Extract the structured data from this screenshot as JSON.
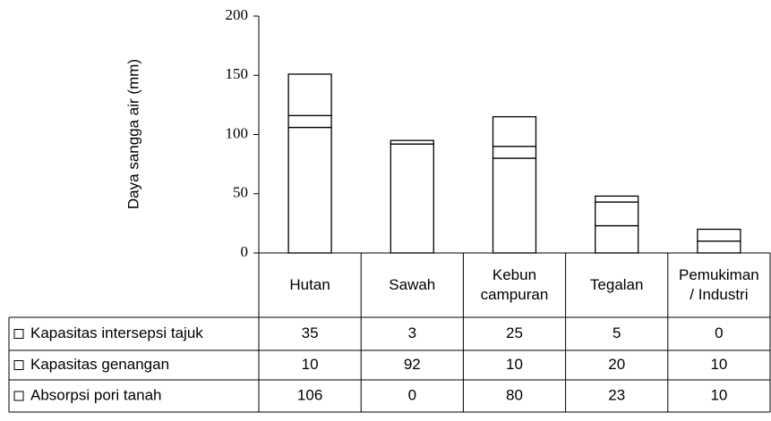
{
  "chart_data": {
    "type": "stacked_bar",
    "ylabel": "Daya sangga air (mm)",
    "categories": [
      "Hutan",
      "Sawah",
      "Kebun campuran",
      "Tegalan",
      "Pemukiman / Industri"
    ],
    "series": [
      {
        "name": "Kapasitas intersepsi tajuk",
        "color": "#ffffff",
        "values": [
          35,
          3,
          25,
          5,
          0
        ]
      },
      {
        "name": "Kapasitas genangan",
        "color": "#ffffff",
        "values": [
          10,
          92,
          10,
          20,
          10
        ]
      },
      {
        "name": "Absorpsi pori tanah",
        "color": "#ffffff",
        "values": [
          106,
          0,
          80,
          23,
          10
        ]
      }
    ],
    "ylim": [
      0,
      200
    ],
    "yticks": [
      0,
      50,
      100,
      150,
      200
    ]
  }
}
